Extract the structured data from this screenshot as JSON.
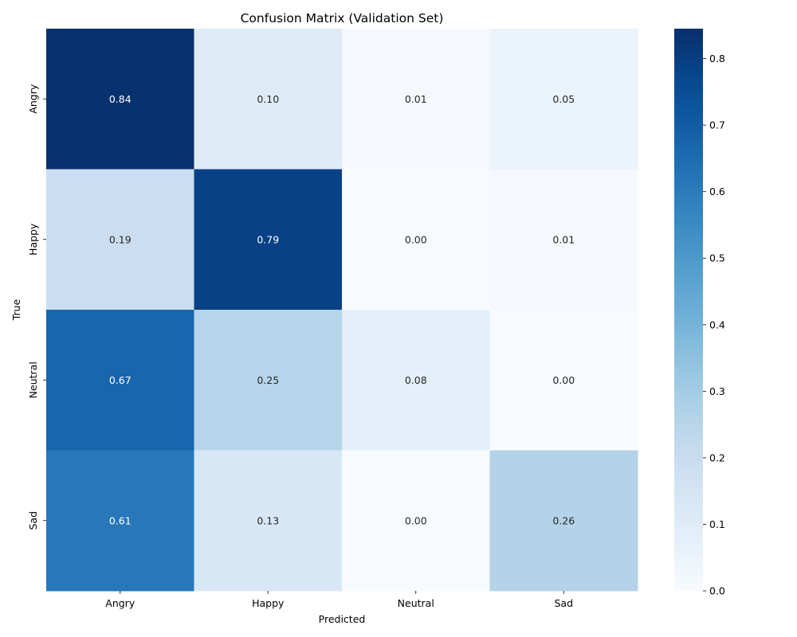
{
  "chart_data": {
    "type": "heatmap",
    "title": "Confusion Matrix (Validation Set)",
    "xlabel": "Predicted",
    "ylabel": "True",
    "x_categories": [
      "Angry",
      "Happy",
      "Neutral",
      "Sad"
    ],
    "y_categories": [
      "Angry",
      "Happy",
      "Neutral",
      "Sad"
    ],
    "values": [
      [
        0.84,
        0.1,
        0.01,
        0.05
      ],
      [
        0.19,
        0.79,
        0.0,
        0.01
      ],
      [
        0.67,
        0.25,
        0.08,
        0.0
      ],
      [
        0.61,
        0.13,
        0.0,
        0.26
      ]
    ],
    "value_labels": [
      [
        "0.84",
        "0.10",
        "0.01",
        "0.05"
      ],
      [
        "0.19",
        "0.79",
        "0.00",
        "0.01"
      ],
      [
        "0.67",
        "0.25",
        "0.08",
        "0.00"
      ],
      [
        "0.61",
        "0.13",
        "0.00",
        "0.26"
      ]
    ],
    "colormap": "Blues",
    "color_range": [
      0.0,
      0.845
    ],
    "colorbar_ticks": [
      0.0,
      0.1,
      0.2,
      0.3,
      0.4,
      0.5,
      0.6,
      0.7,
      0.8
    ],
    "colorbar_tick_labels": [
      "0.0",
      "0.1",
      "0.2",
      "0.3",
      "0.4",
      "0.5",
      "0.6",
      "0.7",
      "0.8"
    ],
    "colorbar": true,
    "grid": false
  }
}
